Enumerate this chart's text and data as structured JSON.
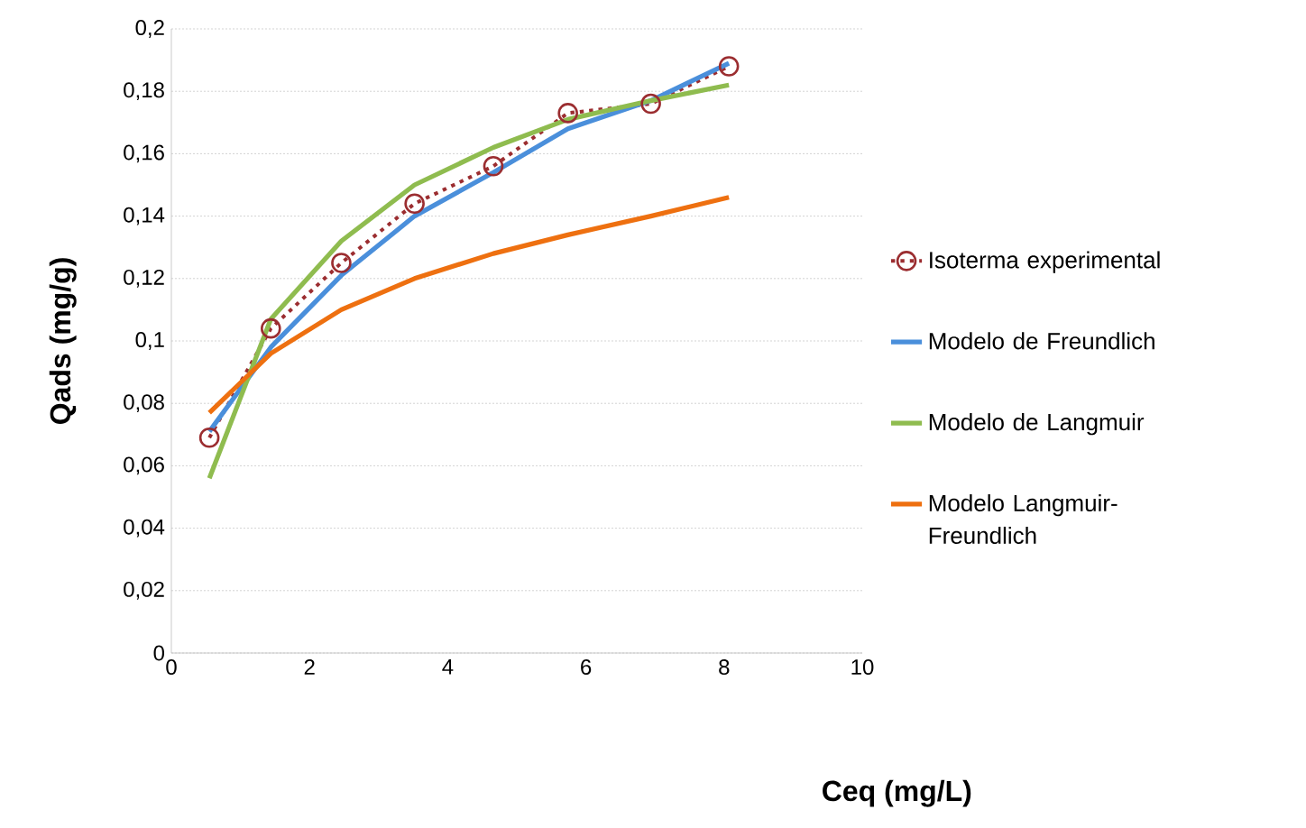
{
  "chart_data": {
    "type": "line",
    "xlabel": "Ceq (mg/L)",
    "ylabel": "Qads (mg/g)",
    "x": [
      0.55,
      1.44,
      2.46,
      3.52,
      4.66,
      5.74,
      6.94,
      8.07
    ],
    "series": [
      {
        "name": "Isoterma experimental",
        "color": "#9b2d30",
        "marker": "circle",
        "line_style": "dotted",
        "values": [
          0.069,
          0.104,
          0.125,
          0.144,
          0.156,
          0.173,
          0.176,
          0.188
        ]
      },
      {
        "name": "Modelo de Freundlich",
        "color": "#4a8fdb",
        "values": [
          0.071,
          0.098,
          0.121,
          0.14,
          0.154,
          0.168,
          0.177,
          0.189
        ]
      },
      {
        "name": "Modelo de Langmuir",
        "color": "#8fbc4f",
        "values": [
          0.056,
          0.107,
          0.132,
          0.15,
          0.162,
          0.171,
          0.177,
          0.182
        ]
      },
      {
        "name": "Modelo Langmuir-Freundlich",
        "color": "#ee7010",
        "values": [
          0.077,
          0.096,
          0.11,
          0.12,
          0.128,
          0.134,
          0.14,
          0.146
        ]
      }
    ],
    "xlim": [
      0,
      10
    ],
    "xticks": [
      0,
      2,
      4,
      6,
      8,
      10
    ],
    "ylim": [
      0,
      0.2
    ],
    "yticks": [
      {
        "value": 0,
        "label": "0"
      },
      {
        "value": 0.02,
        "label": "0,02"
      },
      {
        "value": 0.04,
        "label": "0,04"
      },
      {
        "value": 0.06,
        "label": "0,06"
      },
      {
        "value": 0.08,
        "label": "0,08"
      },
      {
        "value": 0.1,
        "label": "0,1"
      },
      {
        "value": 0.12,
        "label": "0,12"
      },
      {
        "value": 0.14,
        "label": "0,14"
      },
      {
        "value": 0.16,
        "label": "0,16"
      },
      {
        "value": 0.18,
        "label": "0,18"
      },
      {
        "value": 0.2,
        "label": "0,2"
      }
    ],
    "grid": "y",
    "legend": "right"
  }
}
